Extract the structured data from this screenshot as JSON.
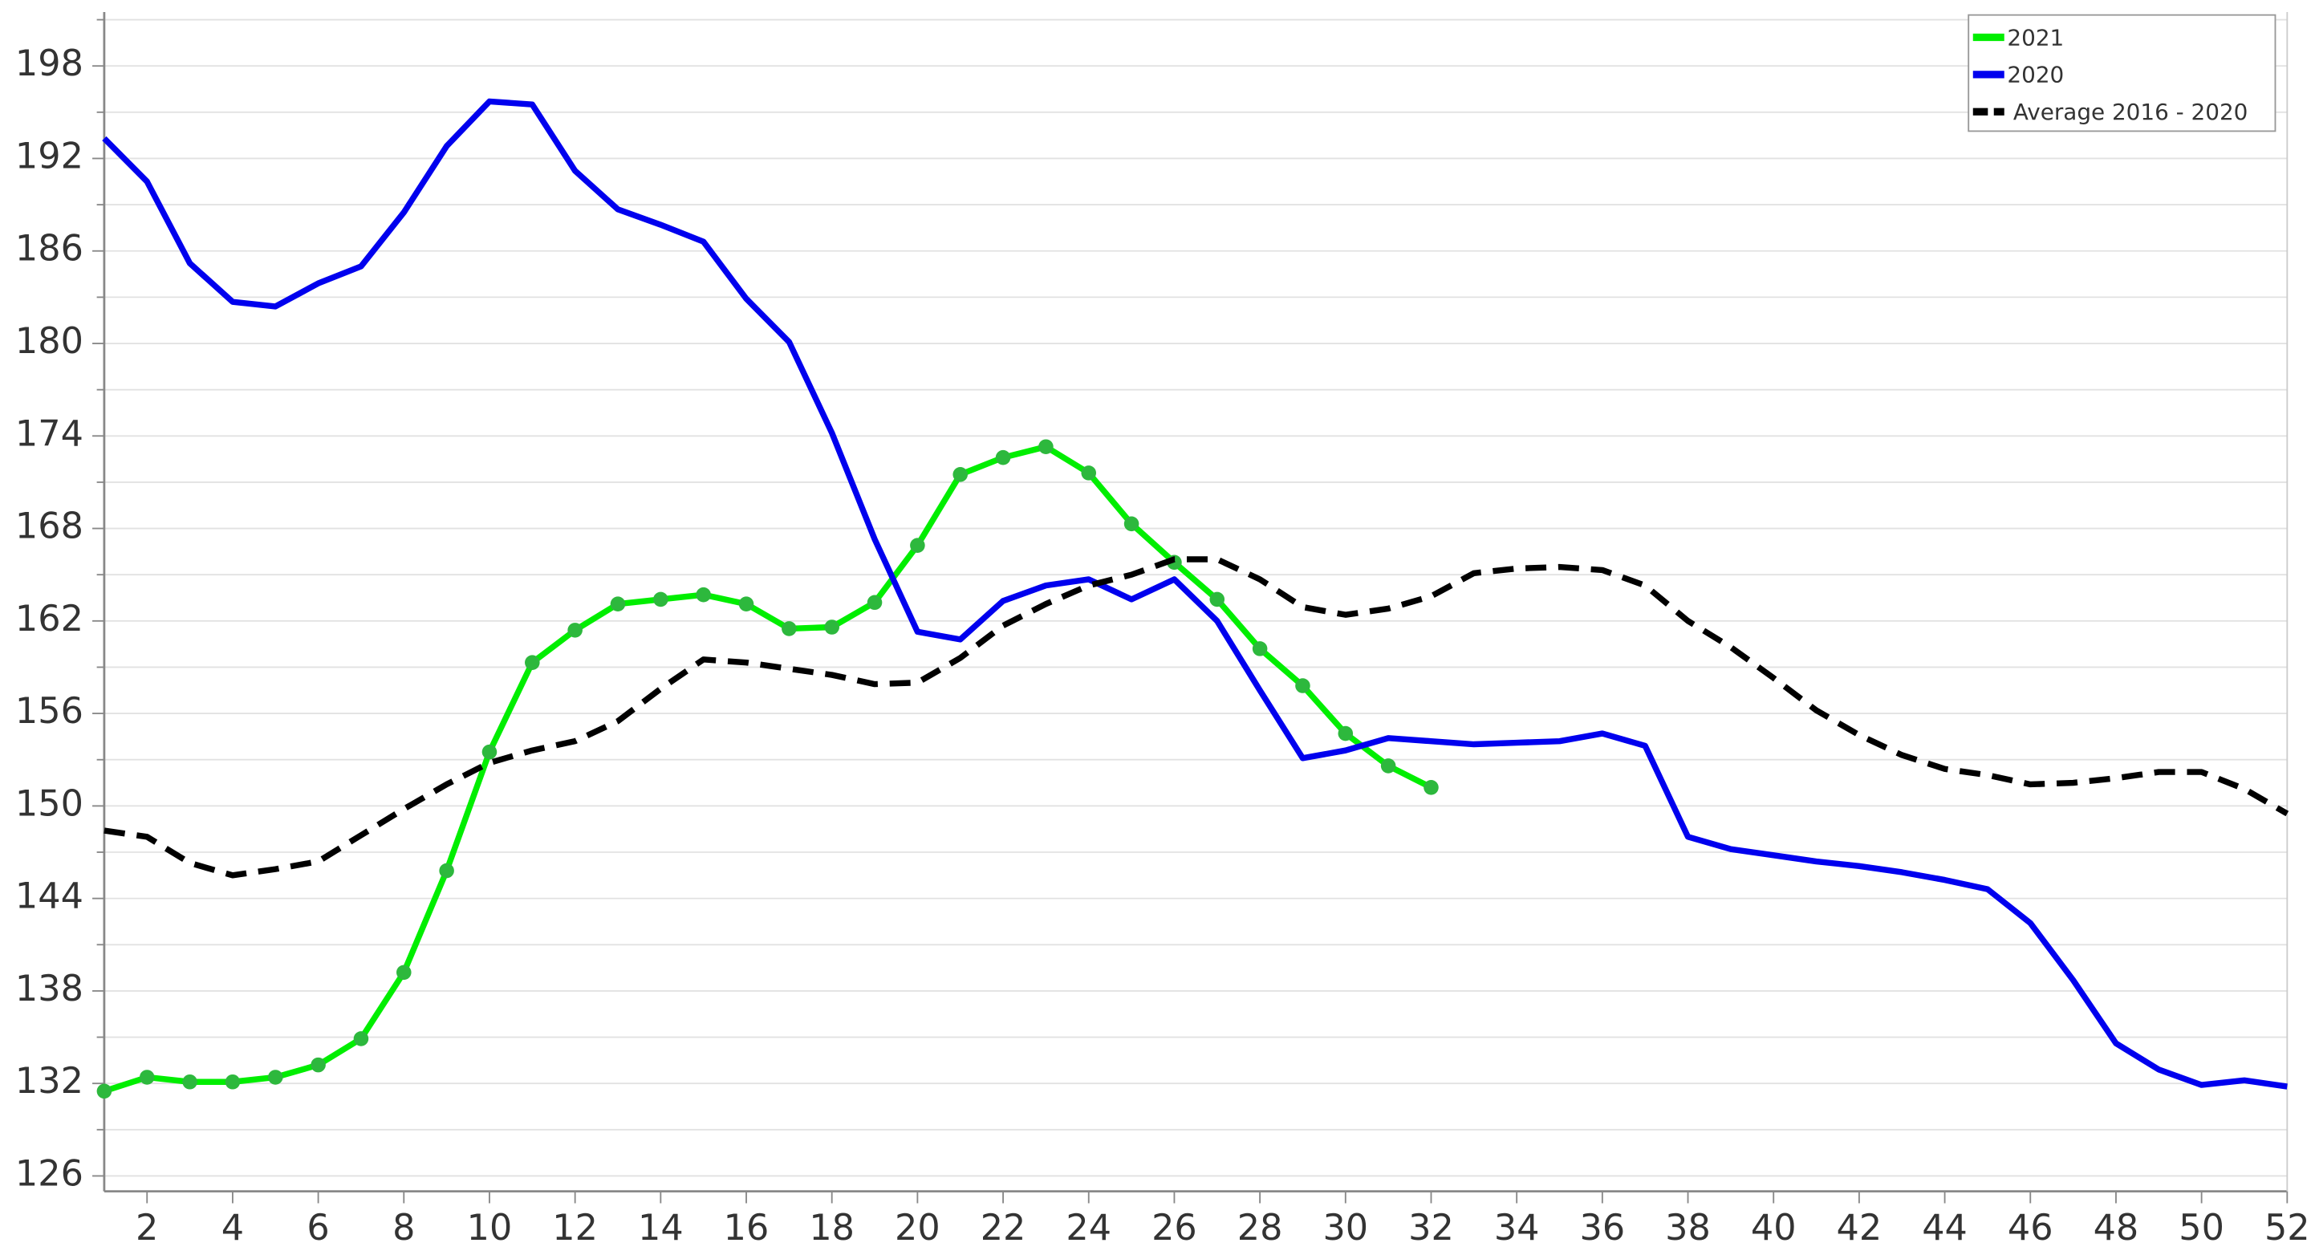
{
  "chart_data": {
    "type": "line",
    "x": [
      1,
      2,
      3,
      4,
      5,
      6,
      7,
      8,
      9,
      10,
      11,
      12,
      13,
      14,
      15,
      16,
      17,
      18,
      19,
      20,
      21,
      22,
      23,
      24,
      25,
      26,
      27,
      28,
      29,
      30,
      31,
      32,
      33,
      34,
      35,
      36,
      37,
      38,
      39,
      40,
      41,
      42,
      43,
      44,
      45,
      46,
      47,
      48,
      49,
      50,
      51,
      52
    ],
    "xlim": [
      1,
      52
    ],
    "xticks": [
      2,
      4,
      6,
      8,
      10,
      12,
      14,
      16,
      18,
      20,
      22,
      24,
      26,
      28,
      30,
      32,
      34,
      36,
      38,
      40,
      42,
      44,
      46,
      48,
      50,
      52
    ],
    "ylim": [
      125,
      201.5
    ],
    "yticks": [
      126,
      132,
      138,
      144,
      150,
      156,
      162,
      168,
      174,
      180,
      186,
      192,
      198
    ],
    "y_minor_ticks": [
      129,
      135,
      141,
      147,
      153,
      159,
      165,
      171,
      177,
      183,
      189,
      195,
      201
    ],
    "grid": true,
    "legend": "upper right",
    "series": [
      {
        "name": "2021",
        "color": "#00ee00",
        "marker_color": "#2db83d",
        "markers": true,
        "dash": false,
        "values": [
          131.5,
          132.4,
          132.1,
          132.1,
          132.4,
          133.2,
          134.9,
          139.2,
          145.8,
          153.5,
          159.3,
          161.4,
          163.1,
          163.4,
          163.7,
          163.1,
          161.5,
          161.6,
          163.2,
          166.9,
          171.5,
          172.6,
          173.3,
          171.6,
          168.3,
          165.8,
          163.4,
          160.2,
          157.8,
          154.7,
          152.6,
          151.2,
          null,
          null,
          null,
          null,
          null,
          null,
          null,
          null,
          null,
          null,
          null,
          null,
          null,
          null,
          null,
          null,
          null,
          null,
          null,
          null
        ]
      },
      {
        "name": "2020",
        "color": "#0000ee",
        "markers": false,
        "dash": false,
        "values": [
          193.3,
          190.5,
          185.2,
          182.7,
          182.4,
          183.9,
          185.0,
          188.5,
          192.8,
          195.7,
          195.5,
          191.2,
          188.7,
          187.7,
          186.6,
          182.9,
          180.1,
          174.2,
          167.3,
          161.3,
          160.8,
          163.3,
          164.3,
          164.7,
          163.4,
          164.7,
          162.0,
          157.5,
          153.1,
          153.6,
          154.4,
          154.2,
          154.0,
          154.1,
          154.2,
          154.7,
          153.9,
          148.0,
          147.2,
          146.8,
          146.4,
          146.1,
          145.7,
          145.2,
          144.6,
          142.4,
          138.7,
          134.6,
          132.9,
          131.9,
          132.2,
          131.8
        ]
      },
      {
        "name": "Average 2016 - 2020",
        "color": "#000000",
        "markers": false,
        "dash": true,
        "values": [
          148.4,
          148.0,
          146.3,
          145.5,
          145.9,
          146.4,
          148.1,
          149.8,
          151.4,
          152.8,
          153.6,
          154.2,
          155.5,
          157.6,
          159.5,
          159.3,
          158.9,
          158.5,
          157.9,
          158.0,
          159.6,
          161.7,
          163.1,
          164.3,
          165.0,
          166.0,
          166.0,
          164.7,
          162.9,
          162.4,
          162.8,
          163.6,
          165.1,
          165.4,
          165.5,
          165.3,
          164.3,
          162.0,
          160.3,
          158.3,
          156.2,
          154.6,
          153.3,
          152.4,
          152.0,
          151.4,
          151.5,
          151.8,
          152.2,
          152.2,
          151.1,
          149.5
        ]
      }
    ]
  }
}
